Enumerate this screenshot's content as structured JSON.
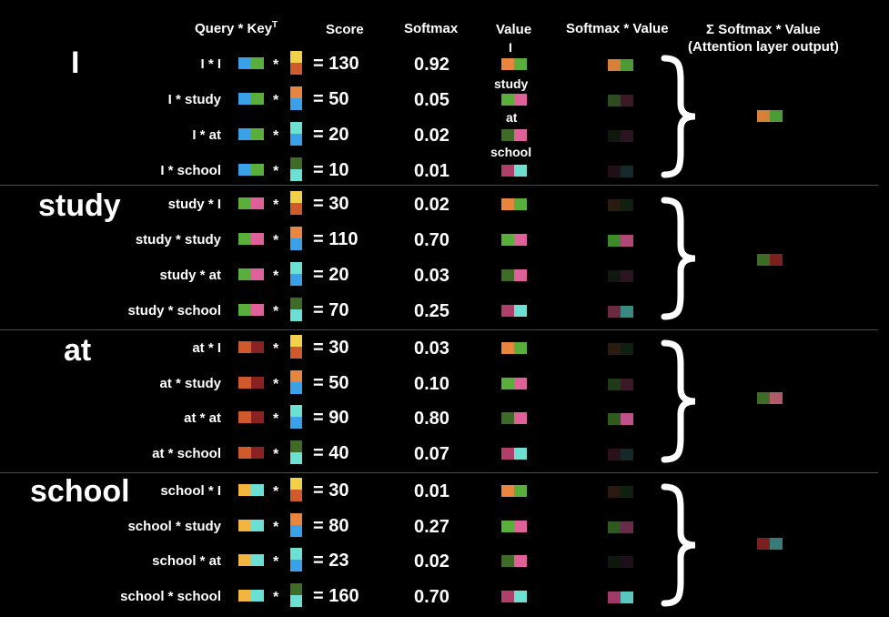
{
  "headers": {
    "query_key": "Query * Key",
    "query_key_sup": "T",
    "score": "Score",
    "softmax": "Softmax",
    "value": "Value",
    "softmax_value": "Softmax * Value",
    "sum_line1": "Σ Softmax * Value",
    "sum_line2": "(Attention layer output)"
  },
  "colors": {
    "I": [
      "#e8853f",
      "#5aaf3c"
    ],
    "study": [
      "#5aaf3c",
      "#e0609a"
    ],
    "at": [
      "#d05a2c",
      "#8b2222"
    ],
    "school": [
      "#f2b540",
      "#6de0d4"
    ],
    "key_I": [
      "#f2d04a",
      "#d05a2c"
    ],
    "key_study": [
      "#e8853f",
      "#3aa0e8"
    ],
    "key_at": [
      "#6de0d4",
      "#3aa0e8"
    ],
    "key_school": [
      "#3e6b26",
      "#6de0d4"
    ],
    "val_I": [
      "#e8853f",
      "#5aaf3c"
    ],
    "val_study": [
      "#5aaf3c",
      "#e0609a"
    ],
    "val_at": [
      "#3e6b26",
      "#e0609a"
    ],
    "val_school": [
      "#b0406a",
      "#6de0d4"
    ],
    "query_I": [
      "#3aa0e8",
      "#5aaf3c"
    ]
  },
  "value_labels": [
    "I",
    "study",
    "at",
    "school"
  ],
  "groups": [
    {
      "word": "I",
      "query": "query_I",
      "output": [
        "#d8803a",
        "#4d9a36"
      ],
      "rows": [
        {
          "pair": "I * I",
          "key": "key_I",
          "score": "= 130",
          "softmax": "0.92",
          "value": "val_I",
          "sv": [
            "#d8803a",
            "#4d9a36"
          ]
        },
        {
          "pair": "I * study",
          "key": "key_study",
          "score": "= 50",
          "softmax": "0.05",
          "value": "val_study",
          "sv": [
            "#2e4a20",
            "#3a1a26"
          ]
        },
        {
          "pair": "I * at",
          "key": "key_at",
          "score": "= 20",
          "softmax": "0.02",
          "value": "val_at",
          "sv": [
            "#0f180c",
            "#2a1420"
          ]
        },
        {
          "pair": "I * school",
          "key": "key_school",
          "score": "= 10",
          "softmax": "0.01",
          "value": "val_school",
          "sv": [
            "#1e1016",
            "#152a28"
          ]
        }
      ]
    },
    {
      "word": "study",
      "query": "study",
      "output": [
        "#3e6b26",
        "#7a2020"
      ],
      "rows": [
        {
          "pair": "study * I",
          "key": "key_I",
          "score": "= 30",
          "softmax": "0.02",
          "value": "val_I",
          "sv": [
            "#2a1a10",
            "#102010"
          ]
        },
        {
          "pair": "study * study",
          "key": "key_study",
          "score": "= 110",
          "softmax": "0.70",
          "value": "val_study",
          "sv": [
            "#3e8a2a",
            "#b04878"
          ]
        },
        {
          "pair": "study * at",
          "key": "key_at",
          "score": "= 20",
          "softmax": "0.03",
          "value": "val_at",
          "sv": [
            "#0f180c",
            "#2a1420"
          ]
        },
        {
          "pair": "study * school",
          "key": "key_school",
          "score": "= 70",
          "softmax": "0.25",
          "value": "val_school",
          "sv": [
            "#6a2a42",
            "#3a8a82"
          ]
        }
      ]
    },
    {
      "word": "at",
      "query": "at",
      "output": [
        "#3e6b26",
        "#b05a6a"
      ],
      "rows": [
        {
          "pair": "at * I",
          "key": "key_I",
          "score": "= 30",
          "softmax": "0.03",
          "value": "val_I",
          "sv": [
            "#2a1a10",
            "#102010"
          ]
        },
        {
          "pair": "at * study",
          "key": "key_study",
          "score": "= 50",
          "softmax": "0.10",
          "value": "val_study",
          "sv": [
            "#1e3a18",
            "#3a1a26"
          ]
        },
        {
          "pair": "at * at",
          "key": "key_at",
          "score": "= 90",
          "softmax": "0.80",
          "value": "val_at",
          "sv": [
            "#2e5a1e",
            "#c0528a"
          ]
        },
        {
          "pair": "at * school",
          "key": "key_school",
          "score": "= 40",
          "softmax": "0.07",
          "value": "val_school",
          "sv": [
            "#2a1018",
            "#152a28"
          ]
        }
      ]
    },
    {
      "word": "school",
      "query": "school",
      "output": [
        "#7a2020",
        "#3a7a78"
      ],
      "rows": [
        {
          "pair": "school * I",
          "key": "key_I",
          "score": "= 30",
          "softmax": "0.01",
          "value": "val_I",
          "sv": [
            "#2a1a10",
            "#102010"
          ]
        },
        {
          "pair": "school * study",
          "key": "key_study",
          "score": "= 80",
          "softmax": "0.27",
          "value": "val_study",
          "sv": [
            "#2e5a1e",
            "#6a2a4a"
          ]
        },
        {
          "pair": "school * at",
          "key": "key_at",
          "score": "= 23",
          "softmax": "0.02",
          "value": "val_at",
          "sv": [
            "#0f180c",
            "#1e1018"
          ]
        },
        {
          "pair": "school * school",
          "key": "key_school",
          "score": "= 160",
          "softmax": "0.70",
          "value": "val_school",
          "sv": [
            "#a03868",
            "#5ac8be"
          ]
        }
      ]
    }
  ]
}
